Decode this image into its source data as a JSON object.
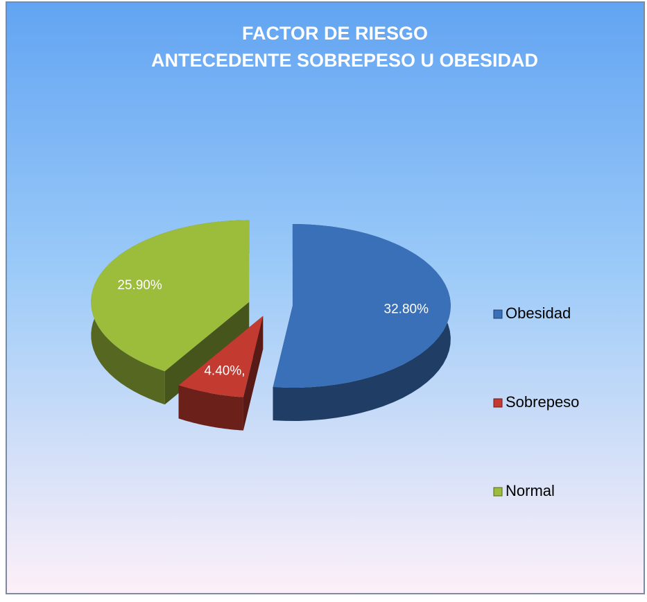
{
  "chart_data": {
    "type": "pie",
    "title": [
      "FACTOR DE RIESGO",
      "ANTECEDENTE SOBREPESO U OBESIDAD"
    ],
    "categories": [
      "Obesidad",
      "Sobrepeso",
      "Normal"
    ],
    "values": [
      32.8,
      4.4,
      25.9
    ],
    "value_labels": [
      "32.80%",
      "4.40%,",
      "25.90%"
    ],
    "colors": [
      "#3a70b8",
      "#c23a30",
      "#9cbc3c"
    ],
    "legend": "right"
  }
}
